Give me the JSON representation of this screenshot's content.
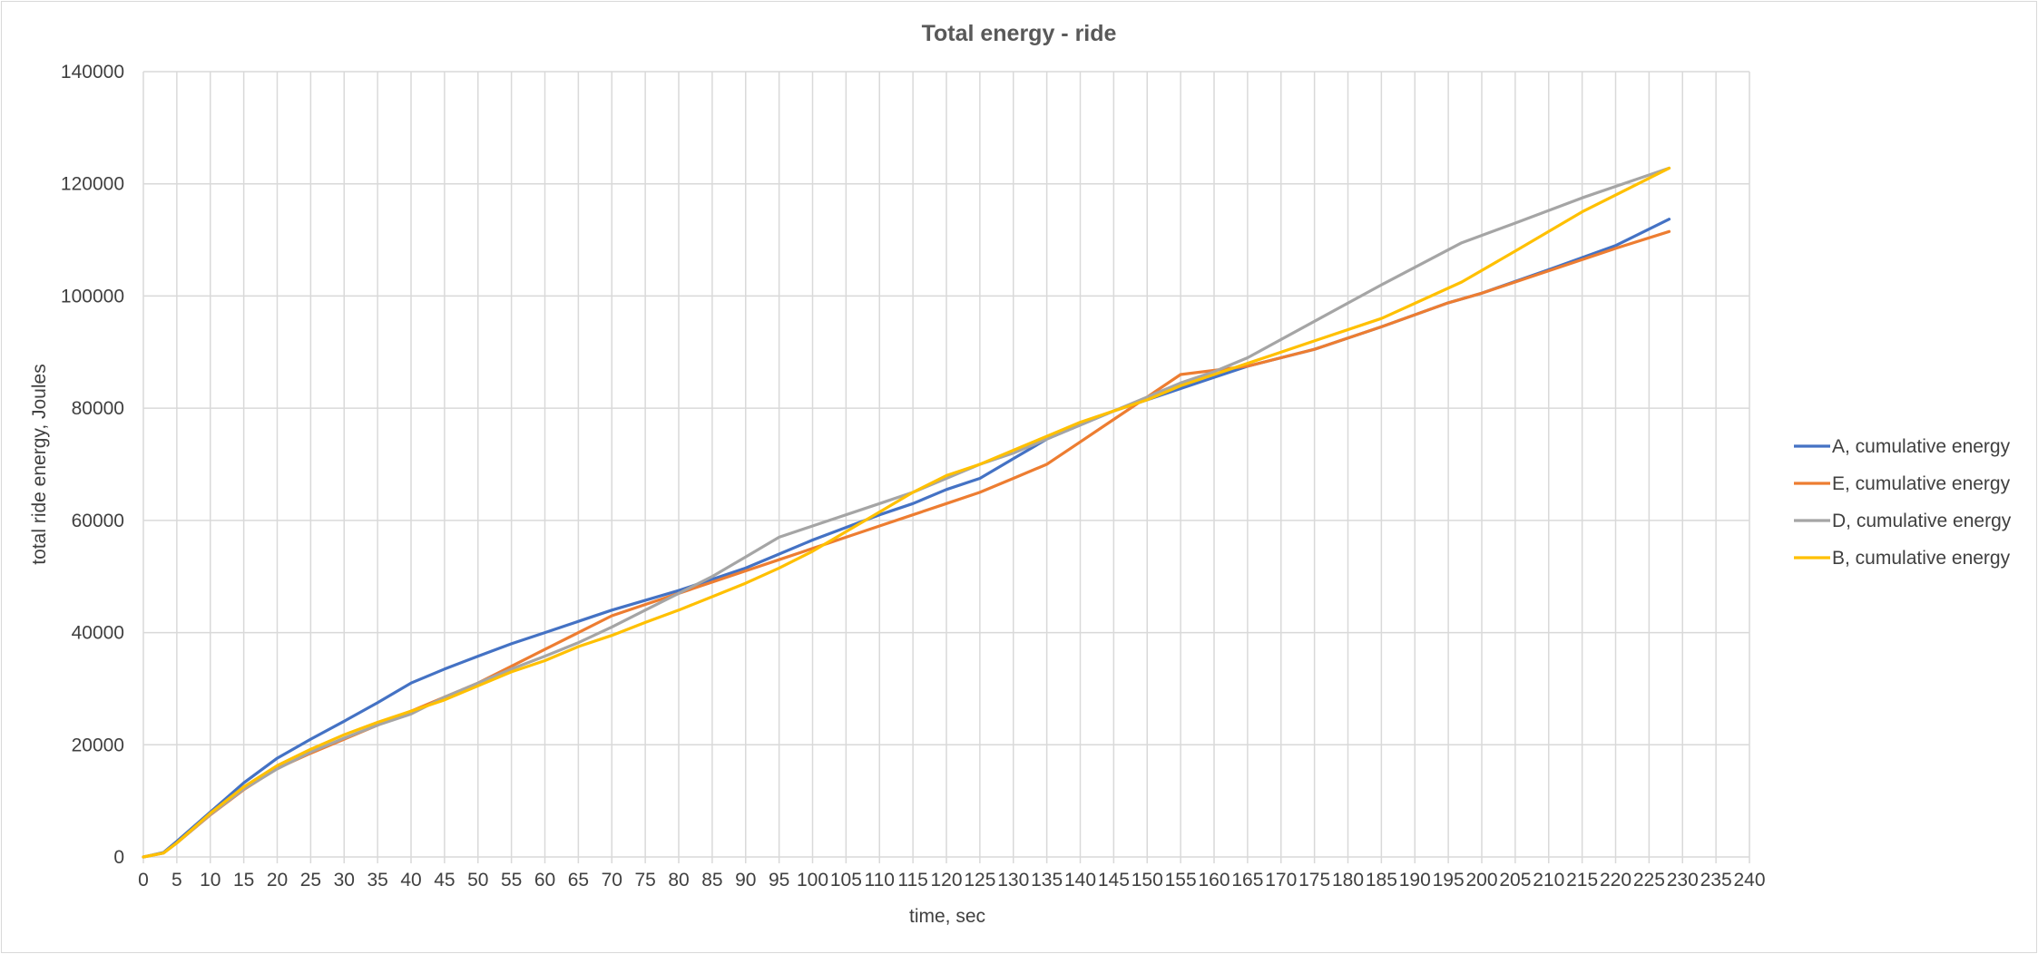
{
  "chart_data": {
    "type": "line",
    "title": "Total energy - ride",
    "xlabel": "time, sec",
    "ylabel": "total ride energy, Joules",
    "xlim": [
      0,
      240
    ],
    "ylim": [
      0,
      140000
    ],
    "x_ticks": [
      0,
      5,
      10,
      15,
      20,
      25,
      30,
      35,
      40,
      45,
      50,
      55,
      60,
      65,
      70,
      75,
      80,
      85,
      90,
      95,
      100,
      105,
      110,
      115,
      120,
      125,
      130,
      135,
      140,
      145,
      150,
      155,
      160,
      165,
      170,
      175,
      180,
      185,
      190,
      195,
      200,
      205,
      210,
      215,
      220,
      225,
      230,
      235,
      240
    ],
    "y_ticks": [
      0,
      20000,
      40000,
      60000,
      80000,
      100000,
      120000,
      140000
    ],
    "grid": true,
    "legend_position": "right",
    "series": [
      {
        "name": "A, cumulative energy",
        "color": "#4472C4",
        "points": [
          [
            0,
            0
          ],
          [
            3,
            800
          ],
          [
            5,
            2800
          ],
          [
            10,
            8000
          ],
          [
            15,
            13200
          ],
          [
            20,
            17600
          ],
          [
            25,
            21000
          ],
          [
            30,
            24200
          ],
          [
            35,
            27500
          ],
          [
            40,
            31000
          ],
          [
            45,
            33500
          ],
          [
            50,
            35800
          ],
          [
            55,
            38000
          ],
          [
            60,
            40000
          ],
          [
            65,
            42000
          ],
          [
            70,
            44000
          ],
          [
            80,
            47500
          ],
          [
            90,
            51500
          ],
          [
            95,
            54000
          ],
          [
            100,
            56500
          ],
          [
            110,
            61000
          ],
          [
            115,
            63000
          ],
          [
            120,
            65500
          ],
          [
            125,
            67500
          ],
          [
            130,
            71000
          ],
          [
            135,
            74500
          ],
          [
            140,
            77000
          ],
          [
            145,
            79500
          ],
          [
            150,
            81500
          ],
          [
            155,
            83500
          ],
          [
            160,
            85500
          ],
          [
            165,
            87500
          ],
          [
            175,
            90500
          ],
          [
            185,
            94500
          ],
          [
            195,
            98800
          ],
          [
            200,
            100500
          ],
          [
            210,
            104700
          ],
          [
            220,
            109000
          ],
          [
            228,
            113700
          ]
        ]
      },
      {
        "name": "E, cumulative energy",
        "color": "#ED7D31",
        "points": [
          [
            0,
            0
          ],
          [
            3,
            700
          ],
          [
            5,
            2500
          ],
          [
            10,
            7500
          ],
          [
            15,
            12000
          ],
          [
            20,
            15800
          ],
          [
            25,
            18500
          ],
          [
            30,
            21000
          ],
          [
            35,
            23500
          ],
          [
            40,
            26000
          ],
          [
            45,
            28500
          ],
          [
            50,
            31000
          ],
          [
            55,
            34000
          ],
          [
            60,
            37000
          ],
          [
            65,
            40000
          ],
          [
            70,
            43000
          ],
          [
            75,
            45000
          ],
          [
            80,
            47000
          ],
          [
            90,
            51000
          ],
          [
            95,
            53000
          ],
          [
            100,
            55000
          ],
          [
            105,
            57000
          ],
          [
            110,
            59000
          ],
          [
            115,
            61000
          ],
          [
            120,
            63000
          ],
          [
            125,
            65000
          ],
          [
            130,
            67500
          ],
          [
            135,
            70000
          ],
          [
            140,
            74000
          ],
          [
            145,
            78000
          ],
          [
            150,
            82000
          ],
          [
            155,
            86000
          ],
          [
            165,
            87500
          ],
          [
            175,
            90500
          ],
          [
            185,
            94500
          ],
          [
            195,
            98800
          ],
          [
            200,
            100500
          ],
          [
            210,
            104500
          ],
          [
            220,
            108500
          ],
          [
            228,
            111500
          ]
        ]
      },
      {
        "name": "D, cumulative energy",
        "color": "#A5A5A5",
        "points": [
          [
            0,
            0
          ],
          [
            3,
            700
          ],
          [
            5,
            2500
          ],
          [
            10,
            7600
          ],
          [
            15,
            12100
          ],
          [
            20,
            15700
          ],
          [
            25,
            18700
          ],
          [
            30,
            21200
          ],
          [
            35,
            23500
          ],
          [
            40,
            25500
          ],
          [
            45,
            28500
          ],
          [
            50,
            31000
          ],
          [
            55,
            33500
          ],
          [
            60,
            35800
          ],
          [
            65,
            38200
          ],
          [
            70,
            41000
          ],
          [
            75,
            44000
          ],
          [
            80,
            47000
          ],
          [
            85,
            50000
          ],
          [
            90,
            53500
          ],
          [
            95,
            57000
          ],
          [
            100,
            59000
          ],
          [
            110,
            63000
          ],
          [
            115,
            65000
          ],
          [
            120,
            67500
          ],
          [
            125,
            70000
          ],
          [
            130,
            72000
          ],
          [
            135,
            74500
          ],
          [
            140,
            77000
          ],
          [
            145,
            79500
          ],
          [
            150,
            82000
          ],
          [
            155,
            84500
          ],
          [
            160,
            86500
          ],
          [
            165,
            89000
          ],
          [
            175,
            95500
          ],
          [
            185,
            102000
          ],
          [
            197,
            109500
          ],
          [
            205,
            113000
          ],
          [
            215,
            117500
          ],
          [
            228,
            122800
          ]
        ]
      },
      {
        "name": "B, cumulative energy",
        "color": "#FFC000",
        "points": [
          [
            0,
            0
          ],
          [
            3,
            700
          ],
          [
            5,
            2500
          ],
          [
            10,
            7800
          ],
          [
            15,
            12500
          ],
          [
            20,
            16300
          ],
          [
            25,
            19200
          ],
          [
            30,
            21800
          ],
          [
            35,
            24000
          ],
          [
            40,
            26000
          ],
          [
            45,
            28000
          ],
          [
            50,
            30500
          ],
          [
            55,
            33000
          ],
          [
            60,
            35000
          ],
          [
            65,
            37500
          ],
          [
            70,
            39500
          ],
          [
            75,
            41800
          ],
          [
            80,
            44000
          ],
          [
            85,
            46400
          ],
          [
            90,
            48800
          ],
          [
            95,
            51500
          ],
          [
            100,
            54500
          ],
          [
            105,
            58000
          ],
          [
            110,
            61500
          ],
          [
            115,
            65000
          ],
          [
            120,
            68000
          ],
          [
            125,
            70000
          ],
          [
            130,
            72500
          ],
          [
            135,
            75000
          ],
          [
            140,
            77500
          ],
          [
            145,
            79500
          ],
          [
            150,
            81500
          ],
          [
            155,
            84000
          ],
          [
            160,
            86000
          ],
          [
            165,
            88000
          ],
          [
            175,
            92000
          ],
          [
            185,
            96000
          ],
          [
            197,
            102500
          ],
          [
            205,
            108000
          ],
          [
            215,
            115000
          ],
          [
            228,
            122800
          ]
        ]
      }
    ]
  }
}
